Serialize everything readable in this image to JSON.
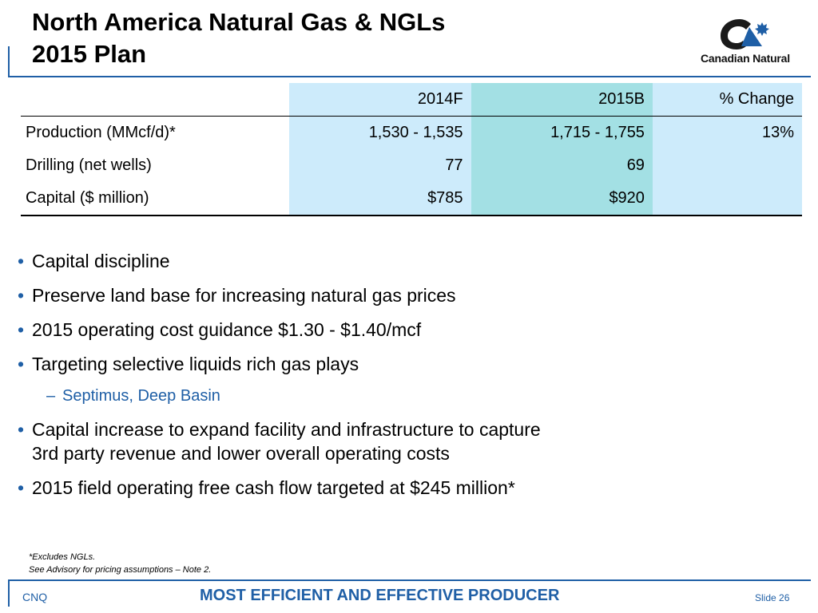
{
  "title": {
    "line1": "North America Natural Gas & NGLs",
    "line2": "2015 Plan"
  },
  "logo": {
    "text": "Canadian Natural",
    "colors": {
      "dark": "#1a1a1a",
      "accent": "#1f5fa6"
    }
  },
  "table": {
    "headers": [
      "",
      "2014F",
      "2015B",
      "% Change"
    ],
    "rows": [
      {
        "label": "Production (MMcf/d)*",
        "c2014": "1,530 - 1,535",
        "c2015": "1,715 - 1,755",
        "change": "13%"
      },
      {
        "label": "Drilling (net wells)",
        "c2014": "77",
        "c2015": "69",
        "change": ""
      },
      {
        "label": "Capital ($ million)",
        "c2014": "$785",
        "c2015": "$920",
        "change": ""
      }
    ]
  },
  "bullets": {
    "b1": "Capital discipline",
    "b2": "Preserve land base for increasing natural gas prices",
    "b3": "2015 operating cost guidance $1.30 - $1.40/mcf",
    "b4": "Targeting selective liquids rich gas plays",
    "b4_sub": "Septimus, Deep Basin",
    "b5_line1": "Capital increase to expand facility and infrastructure to capture",
    "b5_line2": "3rd party revenue and lower overall operating costs",
    "b6": "2015 field operating free cash flow targeted at $245 million*",
    "bullet_char": "•",
    "dash_char": "–"
  },
  "footnotes": {
    "line1": "*Excludes NGLs.",
    "line2": "See Advisory for pricing assumptions – Note 2."
  },
  "footer": {
    "left": "CNQ",
    "center": "MOST EFFICIENT AND EFFECTIVE PRODUCER",
    "right": "Slide 26"
  },
  "colors": {
    "accent_blue": "#1f5fa6",
    "col_2014": "#cdebfb",
    "col_2015": "#a3e0e4",
    "col_change": "#cdebfb"
  }
}
